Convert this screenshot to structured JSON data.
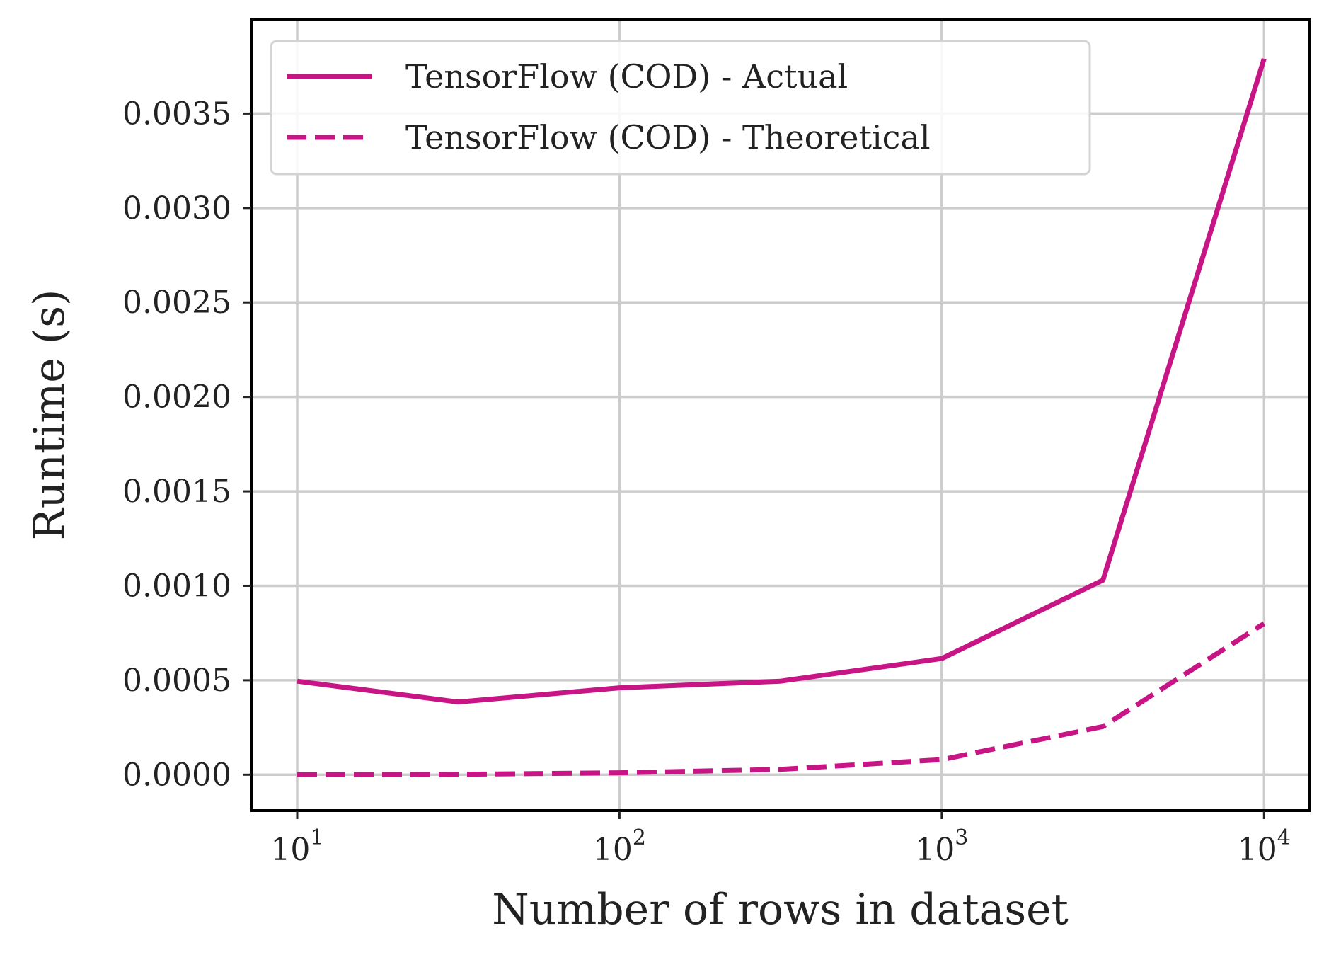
{
  "chart_data": {
    "type": "line",
    "title": "",
    "xlabel": "Number of rows in dataset",
    "ylabel": "Runtime (s)",
    "x_scale": "log",
    "xlim": [
      7.2,
      13800
    ],
    "ylim": [
      -0.00019,
      0.004
    ],
    "x_ticks": [
      {
        "value": 10,
        "base": "10",
        "exp": "1"
      },
      {
        "value": 100,
        "base": "10",
        "exp": "2"
      },
      {
        "value": 1000,
        "base": "10",
        "exp": "3"
      },
      {
        "value": 10000,
        "base": "10",
        "exp": "4"
      }
    ],
    "y_ticks": [
      {
        "value": 0.0,
        "label": "0.0000"
      },
      {
        "value": 0.0005,
        "label": "0.0005"
      },
      {
        "value": 0.001,
        "label": "0.0010"
      },
      {
        "value": 0.0015,
        "label": "0.0015"
      },
      {
        "value": 0.002,
        "label": "0.0020"
      },
      {
        "value": 0.0025,
        "label": "0.0025"
      },
      {
        "value": 0.003,
        "label": "0.0030"
      },
      {
        "value": 0.0035,
        "label": "0.0035"
      }
    ],
    "grid": true,
    "legend_position": "top-left",
    "series": [
      {
        "name": "TensorFlow (COD) - Actual",
        "style": "solid",
        "color": "#c71585",
        "x": [
          10,
          31.6,
          100,
          316,
          1000,
          3162,
          10000
        ],
        "y": [
          0.000495,
          0.000385,
          0.00046,
          0.000495,
          0.000615,
          0.00103,
          0.00379
        ]
      },
      {
        "name": "TensorFlow (COD) - Theoretical",
        "style": "dashed",
        "color": "#c71585",
        "x": [
          10,
          31.6,
          100,
          316,
          1000,
          3162,
          10000
        ],
        "y": [
          0.0,
          2e-06,
          1e-05,
          2.8e-05,
          8e-05,
          0.000255,
          0.0008
        ]
      }
    ]
  }
}
